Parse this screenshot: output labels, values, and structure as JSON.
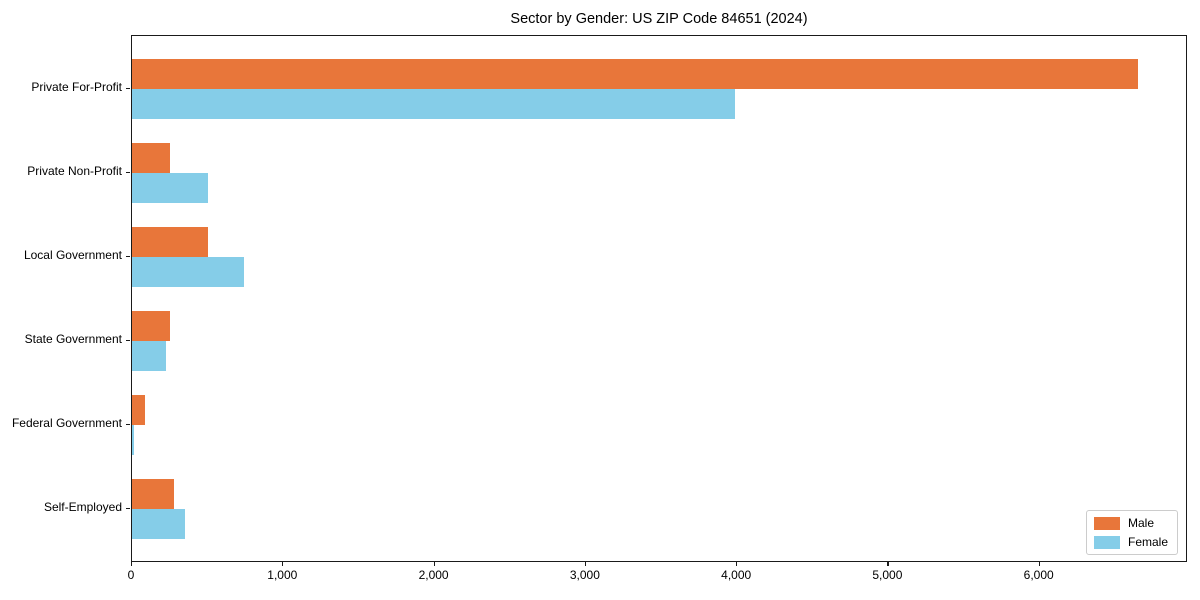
{
  "title": "Sector by Gender: US ZIP Code 84651 (2024)",
  "chart_data": {
    "type": "bar",
    "orientation": "horizontal",
    "title": "Sector by Gender: US ZIP Code 84651 (2024)",
    "categories": [
      "Private For-Profit",
      "Private Non-Profit",
      "Local Government",
      "State Government",
      "Federal Government",
      "Self-Employed"
    ],
    "series": [
      {
        "name": "Male",
        "color": "#e8763a",
        "values": [
          6650,
          250,
          505,
          250,
          85,
          275
        ]
      },
      {
        "name": "Female",
        "color": "#85cde8",
        "values": [
          3985,
          500,
          740,
          225,
          10,
          350
        ]
      }
    ],
    "xlabel": "",
    "ylabel": "",
    "xlim": [
      0,
      6980
    ],
    "x_ticks": [
      0,
      1000,
      2000,
      3000,
      4000,
      5000,
      6000
    ],
    "x_tick_labels": [
      "0",
      "1,000",
      "2,000",
      "3,000",
      "4,000",
      "5,000",
      "6,000"
    ],
    "grid": false,
    "legend": {
      "position": "lower right"
    }
  },
  "colors": {
    "male": "#e8763a",
    "female": "#85cde8",
    "axis": "#1a1a1a",
    "background": "#ffffff"
  }
}
